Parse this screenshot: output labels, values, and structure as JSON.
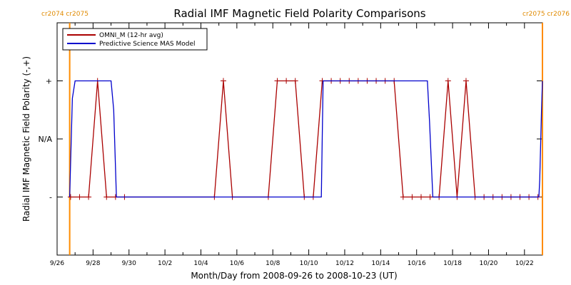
{
  "chart_data": {
    "type": "line",
    "title": "Radial IMF Magnetic Field Polarity Comparisons",
    "xlabel": "Month/Day from 2008-09-26 to 2008-10-23 (UT)",
    "ylabel": "Radial IMF Magnetic Field Polarity (-,+)",
    "x_unit": "days since 2008-09-26 00:00 UT",
    "xlim": [
      0,
      27
    ],
    "ylim": [
      -2,
      2
    ],
    "x_ticks": [
      {
        "x": 0,
        "label": "9/26"
      },
      {
        "x": 2,
        "label": "9/28"
      },
      {
        "x": 4,
        "label": "9/30"
      },
      {
        "x": 6,
        "label": "10/2"
      },
      {
        "x": 8,
        "label": "10/4"
      },
      {
        "x": 10,
        "label": "10/6"
      },
      {
        "x": 12,
        "label": "10/8"
      },
      {
        "x": 14,
        "label": "10/10"
      },
      {
        "x": 16,
        "label": "10/12"
      },
      {
        "x": 18,
        "label": "10/14"
      },
      {
        "x": 20,
        "label": "10/16"
      },
      {
        "x": 22,
        "label": "10/18"
      },
      {
        "x": 24,
        "label": "10/20"
      },
      {
        "x": 26,
        "label": "10/22"
      }
    ],
    "y_ticks": [
      {
        "y": 1,
        "label": "+"
      },
      {
        "y": 0,
        "label": "N/A"
      },
      {
        "y": -1,
        "label": "-"
      }
    ],
    "rotation_markers": [
      {
        "x": 0.7,
        "label": "cr2074 cr2075",
        "side": "left"
      },
      {
        "x": 27.0,
        "label": "cr2075 cr2076",
        "side": "right"
      }
    ],
    "legend_position": "top-left",
    "series": [
      {
        "name": "OMNI_M (12-hr avg)",
        "color": "#aa0000",
        "marker": "plus",
        "x": [
          0.75,
          1.25,
          1.75,
          2.25,
          2.75,
          3.25,
          3.75,
          8.75,
          9.25,
          9.75,
          11.75,
          12.25,
          12.75,
          13.25,
          13.75,
          14.25,
          14.75,
          15.25,
          15.75,
          16.25,
          16.75,
          17.25,
          17.75,
          18.25,
          18.75,
          19.25,
          19.75,
          20.25,
          20.75,
          21.25,
          21.75,
          22.25,
          22.75,
          23.25,
          23.75,
          24.25,
          24.75,
          25.25,
          25.75,
          26.25,
          26.75
        ],
        "y": [
          -1,
          -1,
          -1,
          1,
          -1,
          -1,
          -1,
          -1,
          1,
          -1,
          -1,
          1,
          1,
          1,
          -1,
          -1,
          1,
          1,
          1,
          1,
          1,
          1,
          1,
          1,
          1,
          -1,
          -1,
          -1,
          -1,
          -1,
          1,
          -1,
          1,
          -1,
          -1,
          -1,
          -1,
          -1,
          -1,
          -1,
          -1
        ]
      },
      {
        "name": "Predictive Science MAS Model",
        "color": "#0000cc",
        "x": [
          0.7,
          0.85,
          1.0,
          3.0,
          3.15,
          3.3,
          14.6,
          14.7,
          14.8,
          14.9,
          15.0,
          20.6,
          20.72,
          20.9,
          21.0,
          26.8,
          26.85,
          26.95,
          27.0
        ],
        "y": [
          -1,
          0.7,
          1,
          1,
          0.5,
          -1,
          -1,
          -1,
          1,
          1,
          1,
          1,
          0.3,
          -1,
          -1,
          -1,
          -0.7,
          0.5,
          1
        ]
      }
    ]
  }
}
